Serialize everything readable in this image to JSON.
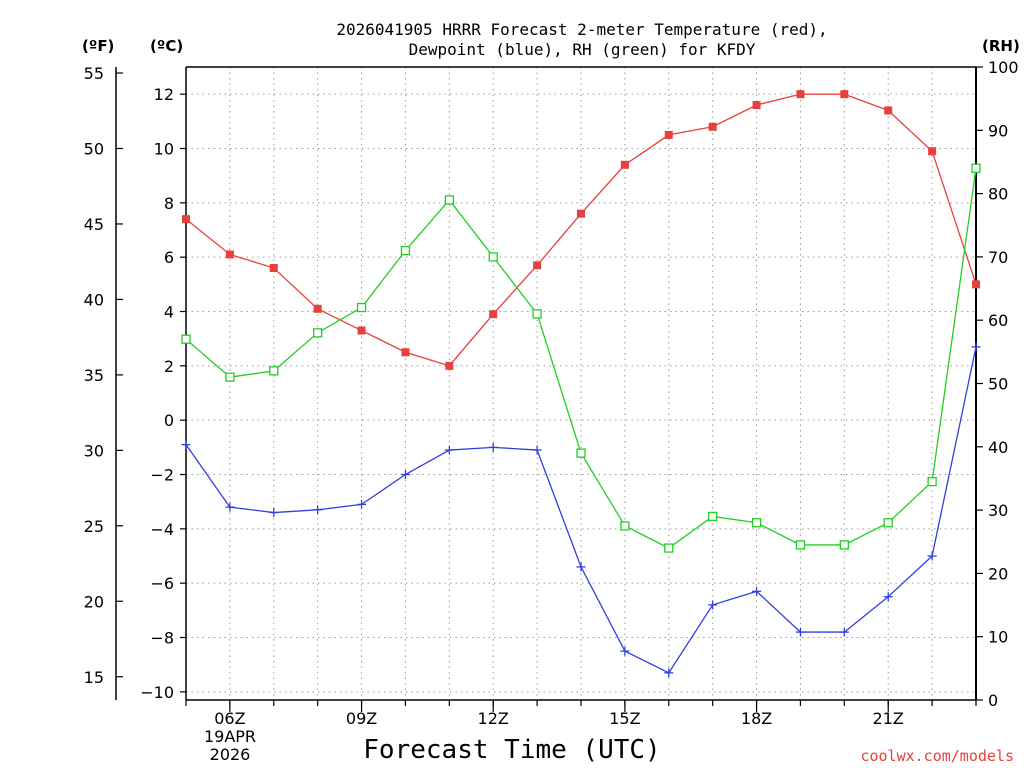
{
  "chart_data": {
    "type": "line",
    "title_line1": "2026041905 HRRR Forecast 2-meter Temperature (red),",
    "title_line2": "Dewpoint (blue), RH (green) for KFDY",
    "xlabel": "Forecast Time (UTC)",
    "credit": "coolwx.com/models",
    "date_label": [
      "19APR",
      "2026"
    ],
    "unit_labels": {
      "fahrenheit": "(ºF)",
      "celsius": "(ºC)",
      "rh": "(RH)"
    },
    "grid": true,
    "x_hours": [
      5,
      6,
      7,
      8,
      9,
      10,
      11,
      12,
      13,
      14,
      15,
      16,
      17,
      18,
      19,
      20,
      21,
      22,
      23
    ],
    "x_ticks": [
      {
        "hour": 6,
        "label": "06Z"
      },
      {
        "hour": 9,
        "label": "09Z"
      },
      {
        "hour": 12,
        "label": "12Z"
      },
      {
        "hour": 15,
        "label": "15Z"
      },
      {
        "hour": 18,
        "label": "18Z"
      },
      {
        "hour": 21,
        "label": "21Z"
      }
    ],
    "xlim": [
      5,
      23
    ],
    "celsius_axis": {
      "ylim": [
        -10.3,
        13.0
      ],
      "ticks": [
        -10,
        -8,
        -6,
        -4,
        -2,
        0,
        2,
        4,
        6,
        8,
        10,
        12
      ]
    },
    "fahrenheit_axis": {
      "ylim": [
        13.46,
        55.4
      ],
      "ticks": [
        15,
        20,
        25,
        30,
        35,
        40,
        45,
        50,
        55
      ]
    },
    "rh_axis": {
      "ylim": [
        0,
        100
      ],
      "ticks": [
        0,
        10,
        20,
        30,
        40,
        50,
        60,
        70,
        80,
        90,
        100
      ]
    },
    "series": [
      {
        "name": "2-meter Temperature",
        "axis": "celsius",
        "color": "#e8403a",
        "marker": "filled-square",
        "values": [
          7.4,
          6.1,
          5.6,
          4.1,
          3.3,
          2.5,
          2.0,
          3.9,
          5.7,
          7.6,
          9.4,
          10.5,
          10.8,
          11.6,
          12.0,
          12.0,
          11.4,
          9.9,
          5.0
        ]
      },
      {
        "name": "Dewpoint",
        "axis": "celsius",
        "color": "#3040e0",
        "marker": "plus",
        "values": [
          -0.9,
          -3.2,
          -3.4,
          -3.3,
          -3.1,
          -2.0,
          -1.1,
          -1.0,
          -1.1,
          -5.4,
          -8.5,
          -9.3,
          -6.8,
          -6.3,
          -7.8,
          -7.8,
          -6.5,
          -5.0,
          2.7
        ]
      },
      {
        "name": "Relative Humidity",
        "axis": "rh",
        "color": "#20d020",
        "marker": "open-square",
        "values": [
          57,
          51,
          52,
          58,
          62,
          71,
          79,
          70,
          61,
          39,
          27.5,
          24,
          29,
          28,
          24.5,
          24.5,
          28,
          34.5,
          84
        ]
      }
    ]
  }
}
